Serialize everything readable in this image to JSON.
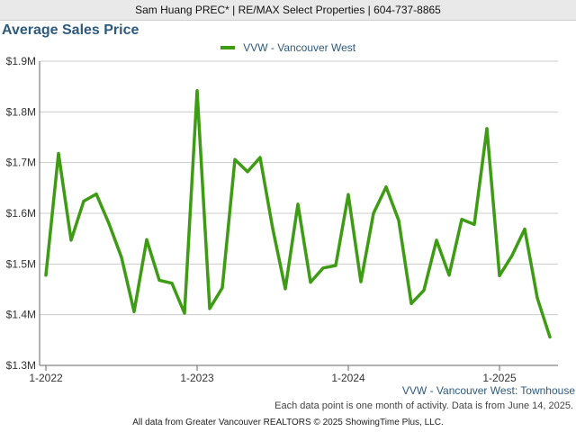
{
  "header": {
    "text": "Sam Huang PREC* | RE/MAX Select Properties | 604-737-8865"
  },
  "colors": {
    "series_line": "#3e9c14",
    "title": "#2e5a7e",
    "grid": "#cccccc",
    "axis": "#666666"
  },
  "chart_data": {
    "type": "line",
    "title": "Average Sales Price",
    "xlabel": "",
    "ylabel": "",
    "ylim": [
      1300000,
      1900000
    ],
    "y_ticks": [
      {
        "value": 1300000,
        "label": "$1.3M"
      },
      {
        "value": 1400000,
        "label": "$1.4M"
      },
      {
        "value": 1500000,
        "label": "$1.5M"
      },
      {
        "value": 1600000,
        "label": "$1.6M"
      },
      {
        "value": 1700000,
        "label": "$1.7M"
      },
      {
        "value": 1800000,
        "label": "$1.8M"
      },
      {
        "value": 1900000,
        "label": "$1.9M"
      }
    ],
    "x_ticks": [
      "1-2022",
      "1-2023",
      "1-2024",
      "1-2025"
    ],
    "grid": true,
    "legend_position": "top-center",
    "series": [
      {
        "name": "VVW - Vancouver West",
        "x": [
          "2022-01",
          "2022-02",
          "2022-03",
          "2022-04",
          "2022-05",
          "2022-06",
          "2022-07",
          "2022-08",
          "2022-09",
          "2022-10",
          "2022-11",
          "2022-12",
          "2023-01",
          "2023-02",
          "2023-03",
          "2023-04",
          "2023-05",
          "2023-06",
          "2023-07",
          "2023-08",
          "2023-09",
          "2023-10",
          "2023-11",
          "2023-12",
          "2024-01",
          "2024-02",
          "2024-03",
          "2024-04",
          "2024-05",
          "2024-06",
          "2024-07",
          "2024-08",
          "2024-09",
          "2024-10",
          "2024-11",
          "2024-12",
          "2025-01",
          "2025-02",
          "2025-03",
          "2025-04",
          "2025-05"
        ],
        "values": [
          1478000,
          1718000,
          1547000,
          1624000,
          1638000,
          1580000,
          1513000,
          1406000,
          1548000,
          1468000,
          1462000,
          1403000,
          1842000,
          1412000,
          1453000,
          1706000,
          1682000,
          1710000,
          1570000,
          1451000,
          1618000,
          1464000,
          1492000,
          1497000,
          1637000,
          1465000,
          1600000,
          1652000,
          1586000,
          1422000,
          1448000,
          1547000,
          1478000,
          1588000,
          1578000,
          1767000,
          1477000,
          1517000,
          1569000,
          1433000,
          1356000
        ]
      }
    ]
  },
  "footer": {
    "series_caption": "VVW - Vancouver West: Townhouse",
    "note": "Each data point is one month of activity. Data is from June 14, 2025.",
    "source": "All data from Greater Vancouver REALTORS © 2025 ShowingTime Plus, LLC."
  }
}
